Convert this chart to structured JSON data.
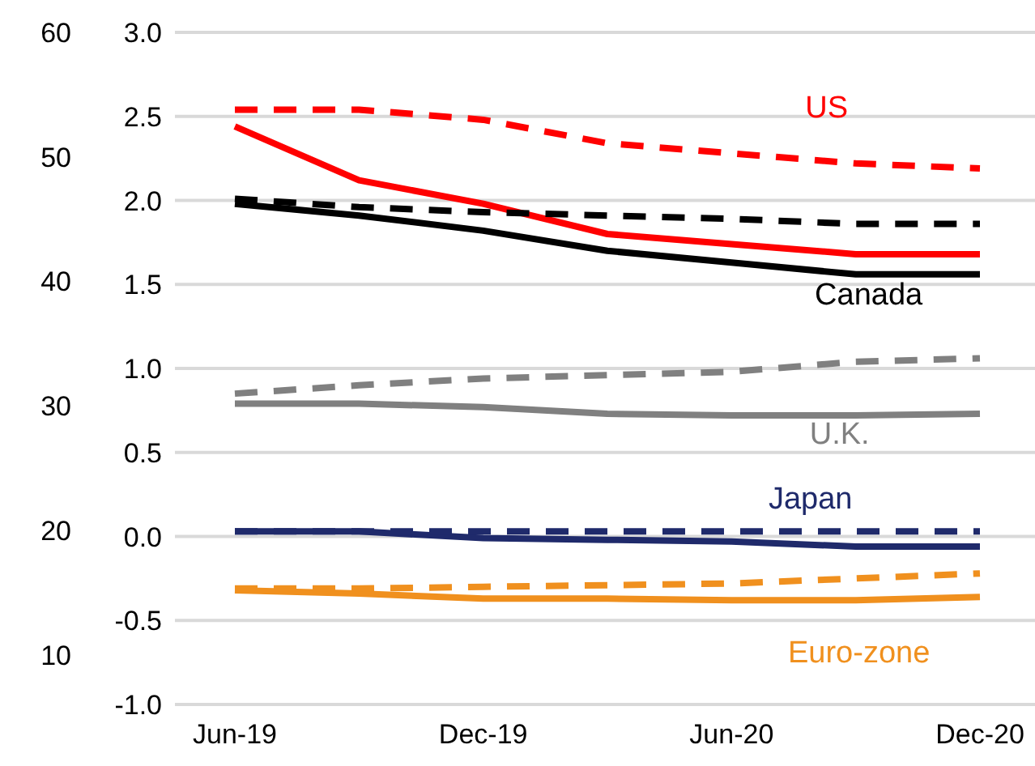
{
  "chart_data": {
    "type": "line",
    "categories": [
      "Jun-19",
      null,
      "Dec-19",
      null,
      "Jun-20",
      null,
      "Dec-20"
    ],
    "series": [
      {
        "name": "US",
        "color": "#ff0000",
        "values": [
          2.44,
          2.12,
          1.98,
          1.8,
          1.74,
          1.68,
          1.68
        ]
      },
      {
        "color": "#ff0000",
        "line_style": "dashed",
        "values": [
          2.54,
          2.54,
          2.48,
          2.34,
          2.28,
          2.22,
          2.19
        ]
      },
      {
        "name": "Canada",
        "color": "#000000",
        "values": [
          1.98,
          1.91,
          1.82,
          1.7,
          1.63,
          1.56,
          1.56
        ]
      },
      {
        "color": "#000000",
        "line_style": "dashed",
        "values": [
          2.01,
          1.96,
          1.93,
          1.91,
          1.89,
          1.86,
          1.86
        ]
      },
      {
        "name": "U.K.",
        "color": "#808080",
        "values": [
          0.79,
          0.79,
          0.77,
          0.73,
          0.72,
          0.72,
          0.73
        ]
      },
      {
        "color": "#808080",
        "line_style": "dashed",
        "values": [
          0.85,
          0.9,
          0.94,
          0.96,
          0.98,
          1.04,
          1.06
        ]
      },
      {
        "name": "Japan",
        "color": "#1f2a6b",
        "values": [
          0.03,
          0.03,
          -0.01,
          -0.02,
          -0.03,
          -0.06,
          -0.06
        ]
      },
      {
        "color": "#1f2a6b",
        "line_style": "dashed",
        "values": [
          0.03,
          0.03,
          0.03,
          0.03,
          0.03,
          0.03,
          0.03
        ]
      },
      {
        "name": "Euro-zone",
        "color": "#f0901e",
        "values": [
          -0.32,
          -0.34,
          -0.37,
          -0.37,
          -0.38,
          -0.38,
          -0.36
        ]
      },
      {
        "color": "#f0901e",
        "line_style": "dashed",
        "values": [
          -0.31,
          -0.31,
          -0.3,
          -0.29,
          -0.28,
          -0.25,
          -0.22
        ]
      }
    ],
    "ylim": [
      -1.0,
      3.0
    ],
    "yticks": [
      {
        "value": -1,
        "label": "-1.0"
      },
      {
        "value": -0.5,
        "label": "-0.5"
      },
      {
        "value": 0,
        "label": "0.0"
      },
      {
        "value": 0.5,
        "label": "0.5"
      },
      {
        "value": 1,
        "label": "1.0"
      },
      {
        "value": 1.5,
        "label": "1.5"
      },
      {
        "value": 2,
        "label": "2.0"
      },
      {
        "value": 2.5,
        "label": "2.5"
      },
      {
        "value": 3,
        "label": "3.0"
      }
    ],
    "y2lim": [
      6,
      60
    ],
    "y2ticks": [
      10,
      20,
      30,
      40,
      50,
      60
    ],
    "grid": "y",
    "marker": "none",
    "line_style": "solid"
  }
}
